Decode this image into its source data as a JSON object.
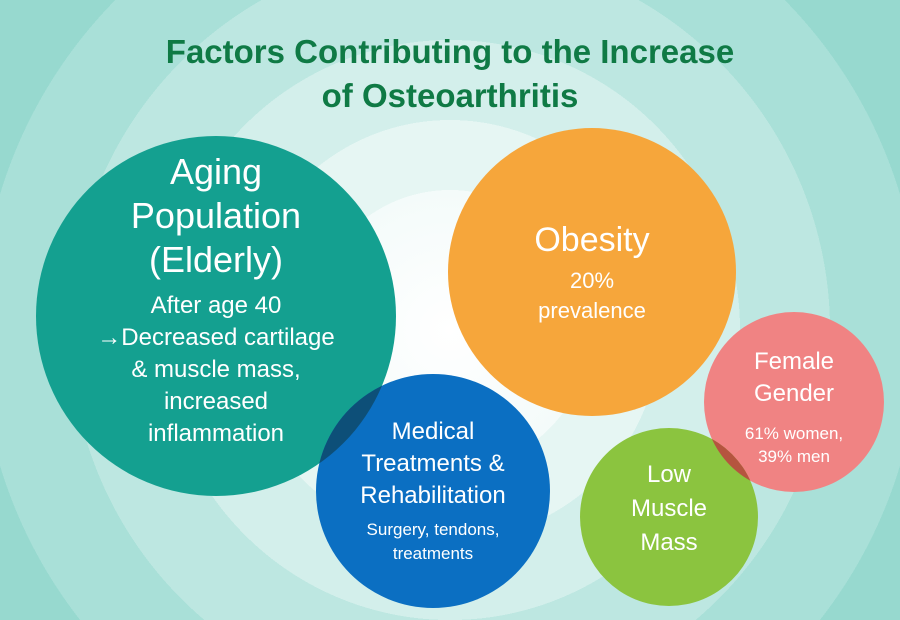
{
  "title": {
    "line1": "Factors Contributing to the Increase",
    "line2": "of Osteoarthritis"
  },
  "factors": {
    "aging": {
      "title_lines": [
        "Aging",
        "Population",
        "(Elderly)"
      ],
      "desc_lines": [
        "After age 40",
        "→Decreased cartilage",
        "& muscle mass,",
        "increased",
        "inflammation"
      ],
      "color": "#14a090"
    },
    "obesity": {
      "title": "Obesity",
      "desc_lines": [
        "20%",
        "prevalence"
      ],
      "color": "#f6a63b"
    },
    "medical": {
      "title_lines": [
        "Medical",
        "Treatments &",
        "Rehabilitation"
      ],
      "desc_lines": [
        "Surgery, tendons,",
        "treatments"
      ],
      "color": "#0b6fc2"
    },
    "female": {
      "title_lines": [
        "Female",
        "Gender"
      ],
      "desc_lines": [
        "61% women,",
        "39% men"
      ],
      "color": "#f08383"
    },
    "low_muscle": {
      "title_lines": [
        "Low",
        "Muscle",
        "Mass"
      ],
      "color": "#8bc43f"
    }
  },
  "colors": {
    "title": "#0f7a45",
    "overlap_aging_medical": "#0d4f78",
    "overlap_female_low": "#b5543f"
  }
}
